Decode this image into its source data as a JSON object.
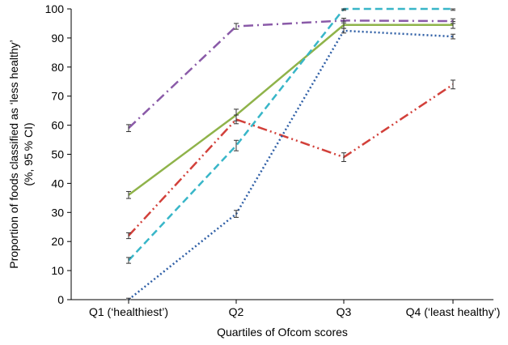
{
  "chart_data": {
    "type": "line",
    "title": "",
    "xlabel": "Quartiles of Ofcom scores",
    "ylabel_line1": "Proportion of foods classified as ‘less healthy’",
    "ylabel_line2": "(%, 95 % CI)",
    "categories": [
      "Q1 (‘healthiest’)",
      "Q2",
      "Q3",
      "Q4 (‘least healthy’)"
    ],
    "ylim": [
      0,
      100
    ],
    "yticks": [
      0,
      10,
      20,
      30,
      40,
      50,
      60,
      70,
      80,
      90,
      100
    ],
    "grid": false,
    "legend": "none",
    "series": [
      {
        "style": "solid",
        "color": "#8fb34a",
        "values": [
          36,
          63.5,
          94.5,
          94.5
        ],
        "ci": [
          1.2,
          2.0,
          1.2,
          1.2
        ]
      },
      {
        "style": "dashdot",
        "color": "#8a5aa8",
        "values": [
          59,
          94,
          96,
          95.8
        ],
        "ci": [
          1.2,
          1.0,
          0.8,
          0.8
        ]
      },
      {
        "style": "dashdotdot",
        "color": "#d2403a",
        "values": [
          22,
          62,
          49,
          74
        ],
        "ci": [
          1.0,
          1.5,
          1.5,
          1.5
        ]
      },
      {
        "style": "dashed",
        "color": "#38b6c8",
        "values": [
          13.5,
          53,
          100,
          100
        ],
        "ci": [
          1.0,
          1.8,
          0.5,
          0.5
        ]
      },
      {
        "style": "dotted",
        "color": "#2f5fa6",
        "values": [
          0,
          29.5,
          92.5,
          90.5
        ],
        "ci": [
          0.5,
          1.2,
          0.8,
          0.8
        ]
      }
    ]
  }
}
